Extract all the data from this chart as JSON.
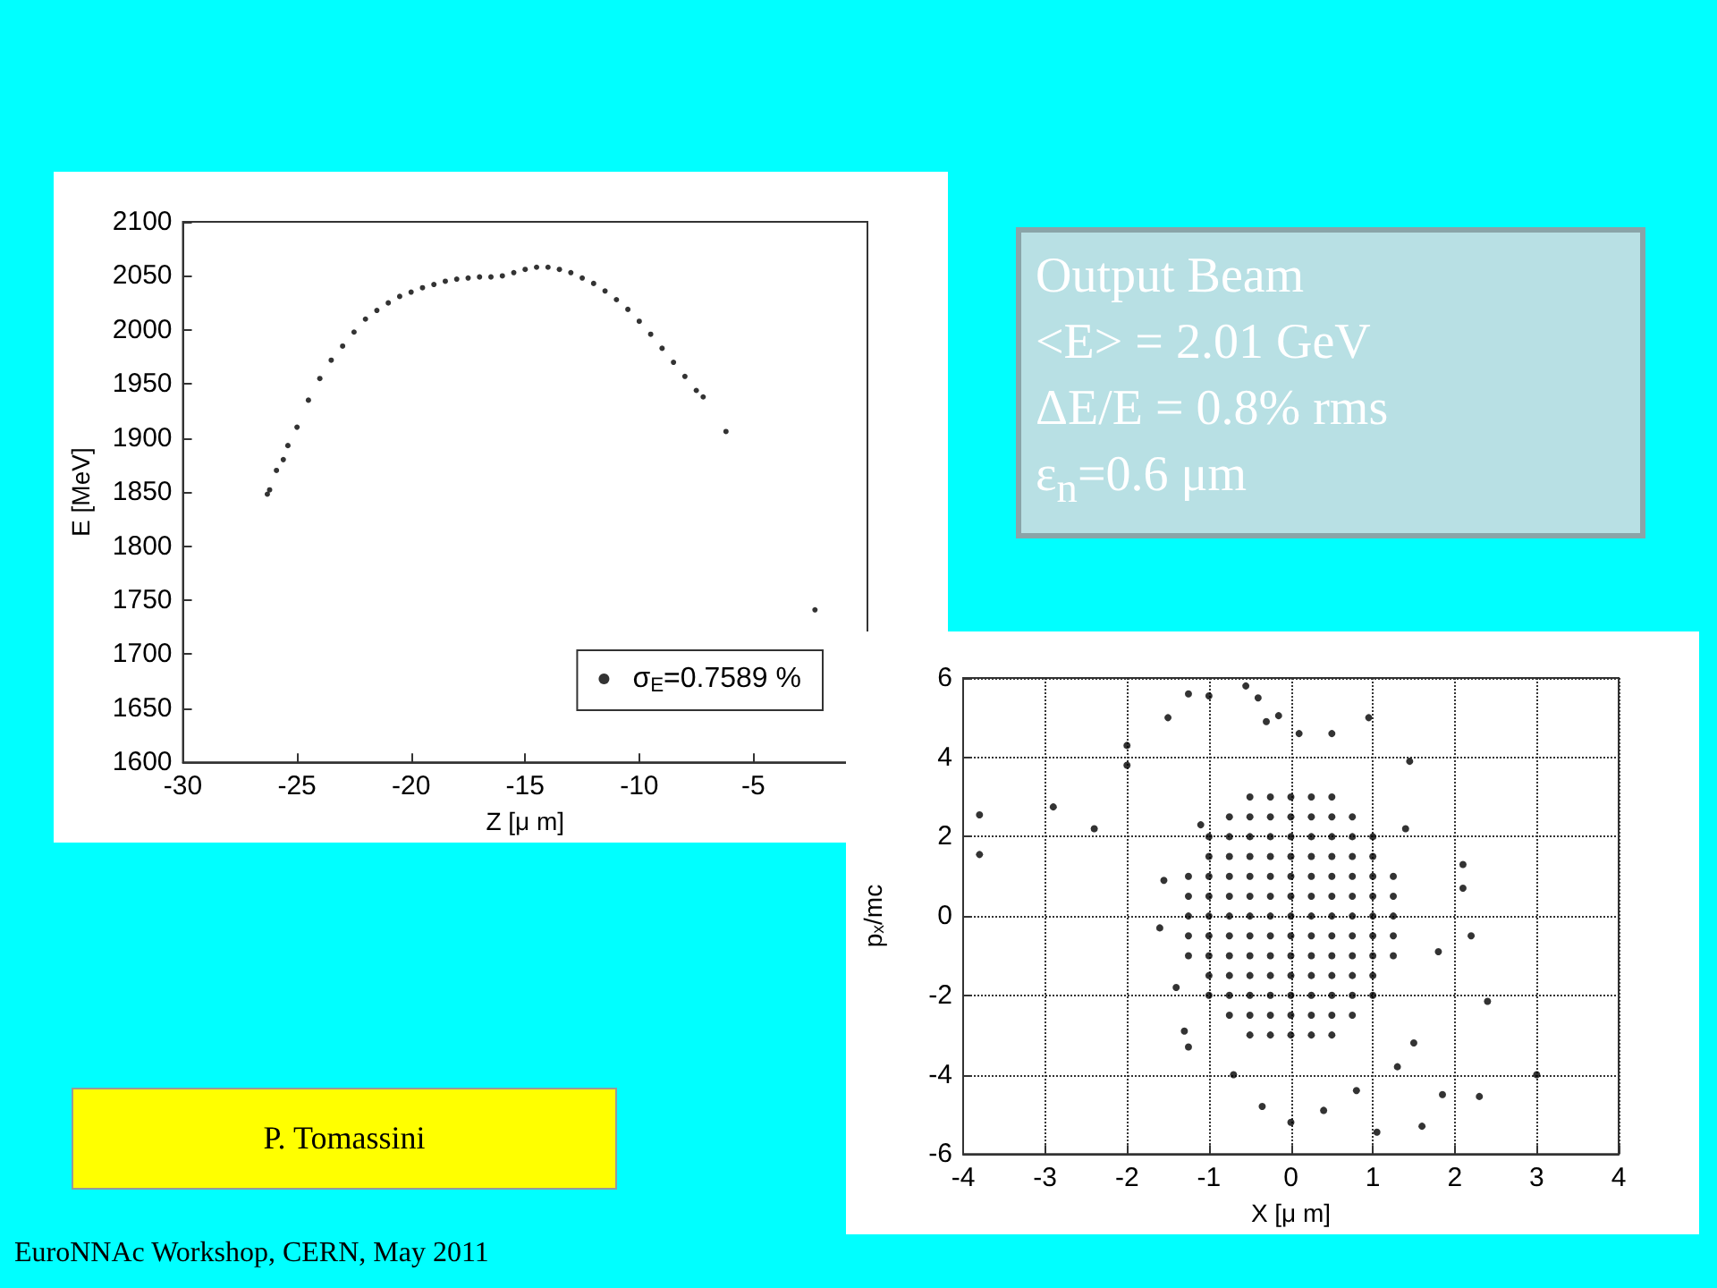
{
  "chart_data": [
    {
      "type": "scatter",
      "xlabel": "Z [μ m]",
      "ylabel": "E [MeV]",
      "xlim": [
        -30,
        0
      ],
      "xticks": [
        -30,
        -25,
        -20,
        -15,
        -10,
        -5
      ],
      "ylim": [
        1600,
        2100
      ],
      "yticks": [
        1600,
        1650,
        1700,
        1750,
        1800,
        1850,
        1900,
        1950,
        2000,
        2050,
        2100
      ],
      "grid": false,
      "legend": "bottom right",
      "marker": "circle",
      "series": [
        {
          "name": "σ$_{E}$=0.7589 %",
          "color": "#000000",
          "x": [
            -26.3,
            -26.2,
            -25.9,
            -25.6,
            -25.4,
            -25,
            -24.5,
            -24,
            -23.5,
            -23,
            -22.5,
            -22,
            -21.5,
            -21,
            -20.5,
            -20,
            -19.5,
            -19,
            -18.5,
            -18,
            -17.5,
            -17,
            -16.5,
            -16,
            -15.5,
            -15,
            -14.5,
            -14,
            -13.5,
            -13,
            -12.5,
            -12,
            -11.5,
            -11,
            -10.5,
            -10,
            -9.5,
            -9,
            -8.5,
            -8,
            -7.5,
            -7.2,
            -6.2,
            -2.3
          ],
          "values": [
            1848,
            1852,
            1870,
            1880,
            1893,
            1910,
            1935,
            1955,
            1972,
            1985,
            1998,
            2010,
            2018,
            2025,
            2031,
            2035,
            2039,
            2042,
            2045,
            2047,
            2048,
            2049,
            2049,
            2050,
            2053,
            2056,
            2058,
            2058,
            2056,
            2053,
            2048,
            2043,
            2036,
            2028,
            2019,
            2008,
            1996,
            1983,
            1970,
            1957,
            1944,
            1938,
            1906,
            1741
          ]
        }
      ]
    },
    {
      "type": "other",
      "title": "Output Beam",
      "annotations": [
        "<E> = 2.01 GeV",
        "ΔE/E = 0.8% rms",
        "ε$_{n}$=0.6 μm"
      ]
    },
    {
      "type": "scatter",
      "xlabel": "X [μ m]",
      "ylabel": "p$_{x}$/mc",
      "xlim": [
        -4,
        4
      ],
      "xticks": [
        -4,
        -3,
        -2,
        -1,
        0,
        1,
        2,
        3,
        4
      ],
      "ylim": [
        -6,
        6
      ],
      "yticks": [
        -6,
        -4,
        -2,
        0,
        2,
        4,
        6
      ],
      "grid": true,
      "marker": "circle",
      "series": [
        {
          "color": "#000000",
          "x": [
            -3.8,
            -3.8,
            -2.9,
            -2.4,
            -2,
            -2,
            -1.5,
            -1.25,
            -1,
            -0.55,
            -0.4,
            0.95,
            1.45,
            1.4,
            2.1,
            2.1,
            2.2,
            1.8,
            2.4,
            1.5,
            1.3,
            1.85,
            2.3,
            3,
            1.6,
            1.05,
            0,
            -0.35,
            0.4,
            -1.6,
            -1.55,
            -1.4,
            -1.3,
            -1.25,
            -1.1,
            0.1,
            0.5,
            -0.3,
            -0.15,
            -0.7,
            0.8,
            -0.5,
            -0.25,
            0,
            0.25,
            0.5,
            -0.75,
            -0.5,
            -0.25,
            0,
            0.25,
            0.5,
            0.75,
            -1,
            -0.75,
            -0.5,
            -0.25,
            0,
            0.25,
            0.5,
            0.75,
            1,
            -1,
            -0.75,
            -0.5,
            -0.25,
            0,
            0.25,
            0.5,
            0.75,
            1,
            -1.25,
            -1,
            -0.75,
            -0.5,
            -0.25,
            0,
            0.25,
            0.5,
            0.75,
            1,
            1.25,
            -1.25,
            -1,
            -0.75,
            -0.5,
            -0.25,
            0,
            0.25,
            0.5,
            0.75,
            1,
            1.25,
            -1.25,
            -1,
            -0.75,
            -0.5,
            -0.25,
            0,
            0.25,
            0.5,
            0.75,
            1,
            1.25,
            -1.25,
            -1,
            -0.75,
            -0.5,
            -0.25,
            0,
            0.25,
            0.5,
            0.75,
            1,
            1.25,
            -1.25,
            -1,
            -0.75,
            -0.5,
            -0.25,
            0,
            0.25,
            0.5,
            0.75,
            1,
            1.25,
            -1,
            -0.75,
            -0.5,
            -0.25,
            0,
            0.25,
            0.5,
            0.75,
            1,
            -1,
            -0.75,
            -0.5,
            -0.25,
            0,
            0.25,
            0.5,
            0.75,
            1,
            -0.75,
            -0.5,
            -0.25,
            0,
            0.25,
            0.5,
            0.75,
            -0.5,
            -0.25,
            0,
            0.25,
            0.5
          ],
          "values": [
            2.55,
            1.55,
            2.75,
            2.2,
            4.3,
            3.8,
            5,
            5.6,
            5.55,
            5.8,
            5.5,
            5,
            3.9,
            2.2,
            1.3,
            0.7,
            -0.5,
            -0.9,
            -2.15,
            -3.2,
            -3.8,
            -4.5,
            -4.55,
            -4,
            -5.3,
            -5.45,
            -5.2,
            -4.8,
            -4.9,
            -0.3,
            0.9,
            -1.8,
            -2.9,
            -3.3,
            2.3,
            4.6,
            4.6,
            4.9,
            5.05,
            -4,
            -4.4,
            3,
            3,
            3,
            3,
            3,
            2.5,
            2.5,
            2.5,
            2.5,
            2.5,
            2.5,
            2.5,
            2,
            2,
            2,
            2,
            2,
            2,
            2,
            2,
            2,
            1.5,
            1.5,
            1.5,
            1.5,
            1.5,
            1.5,
            1.5,
            1.5,
            1.5,
            1,
            1,
            1,
            1,
            1,
            1,
            1,
            1,
            1,
            1,
            1,
            0.5,
            0.5,
            0.5,
            0.5,
            0.5,
            0.5,
            0.5,
            0.5,
            0.5,
            0.5,
            0.5,
            0,
            0,
            0,
            0,
            0,
            0,
            0,
            0,
            0,
            0,
            0,
            -0.5,
            -0.5,
            -0.5,
            -0.5,
            -0.5,
            -0.5,
            -0.5,
            -0.5,
            -0.5,
            -0.5,
            -0.5,
            -1,
            -1,
            -1,
            -1,
            -1,
            -1,
            -1,
            -1,
            -1,
            -1,
            -1,
            -1.5,
            -1.5,
            -1.5,
            -1.5,
            -1.5,
            -1.5,
            -1.5,
            -1.5,
            -1.5,
            -2,
            -2,
            -2,
            -2,
            -2,
            -2,
            -2,
            -2,
            -2,
            -2.5,
            -2.5,
            -2.5,
            -2.5,
            -2.5,
            -2.5,
            -2.5,
            -3,
            -3,
            -3,
            -3,
            -3
          ]
        }
      ]
    },
    {
      "type": "other",
      "annotations": [
        "P. Tomassini",
        "EuroNNAc Workshop, CERN, May 2011"
      ]
    }
  ]
}
